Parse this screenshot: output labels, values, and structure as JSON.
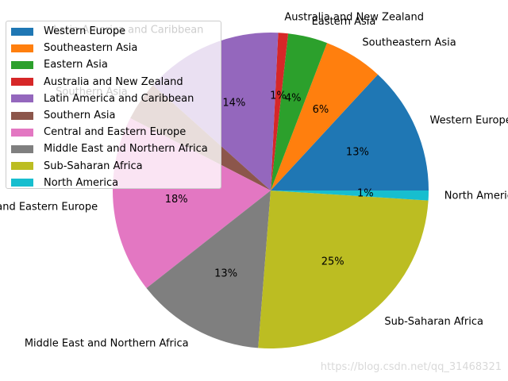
{
  "chart_data": {
    "type": "pie",
    "start_angle_deg": 0,
    "direction": "counterclockwise",
    "legend_placement": "top-left",
    "slices": [
      {
        "label": "Western Europe",
        "value": 13,
        "pct_label": "13%",
        "color": "#1f77b4"
      },
      {
        "label": "Southeastern Asia",
        "value": 6,
        "pct_label": "6%",
        "color": "#ff7f0e"
      },
      {
        "label": "Eastern Asia",
        "value": 4,
        "pct_label": "4%",
        "color": "#2ca02c"
      },
      {
        "label": "Australia and New Zealand",
        "value": 1,
        "pct_label": "1%",
        "color": "#d62728"
      },
      {
        "label": "Latin America and Caribbean",
        "value": 14,
        "pct_label": "14%",
        "color": "#9467bd"
      },
      {
        "label": "Southern Asia",
        "value": 4,
        "pct_label": "",
        "color": "#8c564b"
      },
      {
        "label": "Central and Eastern Europe",
        "value": 18,
        "pct_label": "18%",
        "color": "#e377c2"
      },
      {
        "label": "Middle East and Northern Africa",
        "value": 13,
        "pct_label": "13%",
        "color": "#7f7f7f"
      },
      {
        "label": "Sub-Saharan Africa",
        "value": 25,
        "pct_label": "25%",
        "color": "#bcbd22"
      },
      {
        "label": "North America",
        "value": 1,
        "pct_label": "1%",
        "color": "#17becf"
      }
    ]
  },
  "watermark": "https://blog.csdn.net/qq_31468321"
}
